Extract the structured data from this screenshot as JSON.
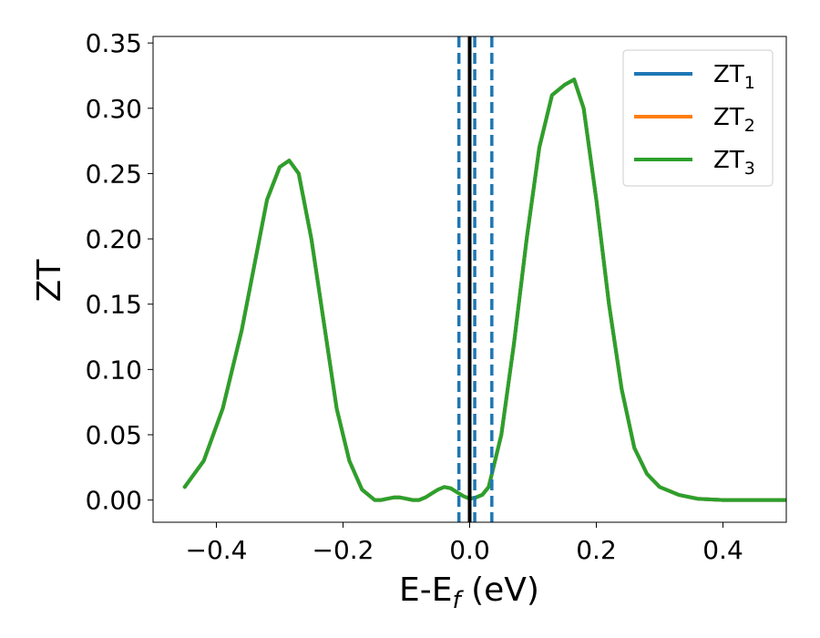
{
  "chart_data": {
    "type": "line",
    "xlabel": {
      "base": "E-E",
      "sub": "f",
      "unit": " (eV)"
    },
    "ylabel": "ZT",
    "xlim": [
      -0.5,
      0.5
    ],
    "ylim": [
      -0.017,
      0.355
    ],
    "x_ticks": [
      -0.4,
      -0.2,
      0.0,
      0.2,
      0.4
    ],
    "x_tick_labels": [
      "−0.4",
      "−0.2",
      "0.0",
      "0.2",
      "0.4"
    ],
    "y_ticks": [
      0.0,
      0.05,
      0.1,
      0.15,
      0.2,
      0.25,
      0.3,
      0.35
    ],
    "y_tick_labels": [
      "0.00",
      "0.05",
      "0.10",
      "0.15",
      "0.20",
      "0.25",
      "0.30",
      "0.35"
    ],
    "grid": false,
    "legend": {
      "position": "top-right",
      "entries": [
        {
          "base": "ZT",
          "sub": "1",
          "color": "#1f77b4"
        },
        {
          "base": "ZT",
          "sub": "2",
          "color": "#ff7f0e"
        },
        {
          "base": "ZT",
          "sub": "3",
          "color": "#2ca02c"
        }
      ]
    },
    "x": [
      -0.45,
      -0.42,
      -0.39,
      -0.36,
      -0.34,
      -0.32,
      -0.3,
      -0.285,
      -0.27,
      -0.25,
      -0.23,
      -0.21,
      -0.19,
      -0.17,
      -0.15,
      -0.14,
      -0.13,
      -0.12,
      -0.11,
      -0.1,
      -0.09,
      -0.08,
      -0.07,
      -0.06,
      -0.05,
      -0.04,
      -0.03,
      -0.02,
      -0.01,
      0.0,
      0.01,
      0.02,
      0.03,
      0.05,
      0.07,
      0.09,
      0.11,
      0.13,
      0.15,
      0.165,
      0.18,
      0.2,
      0.22,
      0.24,
      0.26,
      0.28,
      0.3,
      0.33,
      0.36,
      0.4,
      0.45,
      0.5
    ],
    "series": [
      {
        "name": "ZT1",
        "color": "#1f77b4",
        "values": [
          0.01,
          0.03,
          0.07,
          0.13,
          0.18,
          0.23,
          0.255,
          0.26,
          0.25,
          0.2,
          0.135,
          0.07,
          0.03,
          0.008,
          0.0,
          0.0,
          0.001,
          0.002,
          0.002,
          0.001,
          0.0,
          0.0,
          0.002,
          0.005,
          0.008,
          0.01,
          0.009,
          0.006,
          0.003,
          0.001,
          0.002,
          0.004,
          0.01,
          0.05,
          0.12,
          0.2,
          0.27,
          0.31,
          0.318,
          0.322,
          0.3,
          0.23,
          0.15,
          0.085,
          0.04,
          0.02,
          0.01,
          0.004,
          0.001,
          0.0,
          0.0,
          0.0
        ]
      },
      {
        "name": "ZT2",
        "color": "#ff7f0e",
        "values": [
          0.01,
          0.03,
          0.07,
          0.13,
          0.18,
          0.23,
          0.255,
          0.26,
          0.25,
          0.2,
          0.135,
          0.07,
          0.03,
          0.008,
          0.0,
          0.0,
          0.001,
          0.002,
          0.002,
          0.001,
          0.0,
          0.0,
          0.002,
          0.005,
          0.008,
          0.01,
          0.009,
          0.006,
          0.003,
          0.001,
          0.002,
          0.004,
          0.01,
          0.05,
          0.12,
          0.2,
          0.27,
          0.31,
          0.318,
          0.322,
          0.3,
          0.23,
          0.15,
          0.085,
          0.04,
          0.02,
          0.01,
          0.004,
          0.001,
          0.0,
          0.0,
          0.0
        ]
      },
      {
        "name": "ZT3",
        "color": "#2ca02c",
        "values": [
          0.01,
          0.03,
          0.07,
          0.13,
          0.18,
          0.23,
          0.255,
          0.26,
          0.25,
          0.2,
          0.135,
          0.07,
          0.03,
          0.008,
          0.0,
          0.0,
          0.001,
          0.002,
          0.002,
          0.001,
          0.0,
          0.0,
          0.002,
          0.005,
          0.008,
          0.01,
          0.009,
          0.006,
          0.003,
          0.001,
          0.002,
          0.004,
          0.01,
          0.05,
          0.12,
          0.2,
          0.27,
          0.31,
          0.318,
          0.322,
          0.3,
          0.23,
          0.15,
          0.085,
          0.04,
          0.02,
          0.01,
          0.004,
          0.001,
          0.0,
          0.0,
          0.0
        ]
      }
    ],
    "vertical_lines": [
      {
        "x": 0.0,
        "color": "#000000",
        "style": "solid"
      },
      {
        "x": -0.017,
        "color": "#1f77b4",
        "style": "dashed"
      },
      {
        "x": 0.008,
        "color": "#1f77b4",
        "style": "dashed"
      },
      {
        "x": 0.035,
        "color": "#1f77b4",
        "style": "dashed"
      }
    ]
  }
}
